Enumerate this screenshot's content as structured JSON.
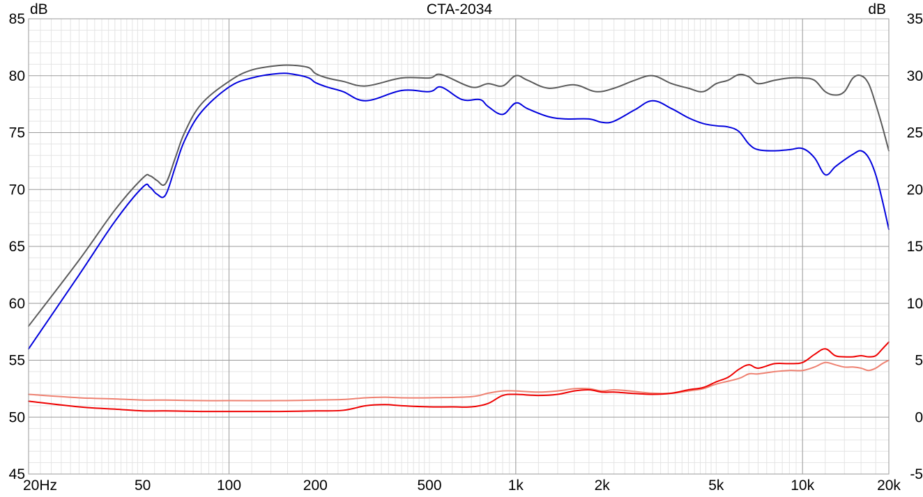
{
  "chart_data": {
    "type": "line",
    "title": "CTA-2034",
    "xscale": "log",
    "xlim": [
      20,
      20000
    ],
    "y_left": {
      "label": "dB",
      "lim": [
        45,
        85
      ],
      "ticks": [
        45,
        50,
        55,
        60,
        65,
        70,
        75,
        80,
        85
      ]
    },
    "y_right": {
      "label": "dB",
      "lim": [
        -5,
        35
      ],
      "ticks": [
        -5,
        0,
        5,
        10,
        15,
        20,
        25,
        30,
        35
      ]
    },
    "x_ticks": [
      {
        "value": 20,
        "label": "20Hz"
      },
      {
        "value": 50,
        "label": "50"
      },
      {
        "value": 100,
        "label": "100"
      },
      {
        "value": 200,
        "label": "200"
      },
      {
        "value": 500,
        "label": "500"
      },
      {
        "value": 1000,
        "label": "1k"
      },
      {
        "value": 2000,
        "label": "2k"
      },
      {
        "value": 5000,
        "label": "5k"
      },
      {
        "value": 10000,
        "label": "10k"
      },
      {
        "value": 20000,
        "label": "20k"
      }
    ],
    "grid": true,
    "legend": "none",
    "series": [
      {
        "axis": "left",
        "color": "#5a5a5a",
        "x": [
          20,
          30,
          40,
          50,
          53,
          56,
          60,
          65,
          70,
          80,
          100,
          120,
          150,
          170,
          190,
          200,
          220,
          250,
          300,
          400,
          500,
          550,
          700,
          800,
          900,
          1000,
          1100,
          1300,
          1600,
          1900,
          2200,
          2600,
          3000,
          3500,
          4000,
          4500,
          5000,
          5500,
          6000,
          6500,
          7000,
          8000,
          9000,
          10000,
          11000,
          12000,
          13000,
          14000,
          15000,
          16000,
          17000,
          18000,
          19000,
          20000
        ],
        "y": [
          58.0,
          63.8,
          68.2,
          71.0,
          71.2,
          70.8,
          70.5,
          72.8,
          75.0,
          77.5,
          79.5,
          80.5,
          80.9,
          80.9,
          80.7,
          80.2,
          79.8,
          79.5,
          79.1,
          79.8,
          79.8,
          80.1,
          79.0,
          79.3,
          79.1,
          80.0,
          79.6,
          78.9,
          79.2,
          78.6,
          78.9,
          79.6,
          80.0,
          79.3,
          78.9,
          78.6,
          79.3,
          79.6,
          80.1,
          79.9,
          79.3,
          79.6,
          79.8,
          79.8,
          79.6,
          78.6,
          78.3,
          78.6,
          79.8,
          80.0,
          79.3,
          77.5,
          75.5,
          73.4
        ]
      },
      {
        "axis": "left",
        "color": "#0000dd",
        "x": [
          20,
          30,
          40,
          50,
          53,
          56,
          60,
          65,
          70,
          80,
          100,
          120,
          150,
          170,
          190,
          200,
          220,
          250,
          300,
          400,
          500,
          550,
          650,
          750,
          800,
          900,
          1000,
          1100,
          1300,
          1500,
          1800,
          2000,
          2200,
          2600,
          3000,
          3500,
          4000,
          4500,
          5000,
          5500,
          6000,
          6500,
          7000,
          8000,
          9000,
          10000,
          11000,
          12000,
          13000,
          14000,
          15000,
          16000,
          17000,
          18000,
          19000,
          20000
        ],
        "y": [
          56.0,
          62.5,
          67.2,
          70.2,
          70.2,
          69.6,
          69.5,
          72.0,
          74.3,
          76.8,
          79.0,
          79.8,
          80.2,
          80.1,
          79.8,
          79.4,
          79.0,
          78.6,
          77.8,
          78.7,
          78.6,
          79.0,
          77.9,
          77.9,
          77.3,
          76.6,
          77.6,
          77.1,
          76.4,
          76.2,
          76.2,
          75.9,
          76.0,
          77.0,
          77.8,
          77.1,
          76.3,
          75.8,
          75.6,
          75.5,
          75.1,
          74.0,
          73.5,
          73.4,
          73.5,
          73.6,
          72.8,
          71.3,
          72.0,
          72.6,
          73.1,
          73.4,
          72.8,
          71.3,
          69.0,
          66.5
        ]
      },
      {
        "axis": "right",
        "color": "#ee8070",
        "x": [
          20,
          30,
          40,
          50,
          60,
          80,
          100,
          150,
          200,
          250,
          300,
          350,
          400,
          500,
          700,
          800,
          900,
          1000,
          1200,
          1400,
          1600,
          1800,
          2000,
          2200,
          2500,
          3000,
          3500,
          4000,
          4500,
          5000,
          6000,
          6500,
          7000,
          8000,
          9000,
          10000,
          11000,
          12000,
          13000,
          14000,
          15000,
          16000,
          17000,
          18000,
          19000,
          20000
        ],
        "y": [
          2.0,
          1.7,
          1.6,
          1.5,
          1.5,
          1.45,
          1.45,
          1.45,
          1.5,
          1.55,
          1.7,
          1.75,
          1.7,
          1.7,
          1.8,
          2.1,
          2.3,
          2.3,
          2.2,
          2.3,
          2.5,
          2.5,
          2.3,
          2.4,
          2.3,
          2.1,
          2.1,
          2.3,
          2.5,
          2.9,
          3.4,
          3.8,
          3.8,
          4.0,
          4.1,
          4.1,
          4.4,
          4.8,
          4.6,
          4.4,
          4.4,
          4.3,
          4.1,
          4.3,
          4.7,
          5.0
        ]
      },
      {
        "axis": "right",
        "color": "#ee0000",
        "x": [
          20,
          30,
          40,
          50,
          60,
          80,
          100,
          150,
          200,
          250,
          300,
          350,
          400,
          500,
          600,
          700,
          800,
          900,
          1000,
          1200,
          1400,
          1600,
          1800,
          2000,
          2200,
          2500,
          3000,
          3500,
          4000,
          4500,
          5000,
          5500,
          6000,
          6500,
          7000,
          8000,
          9000,
          10000,
          11000,
          12000,
          13000,
          14000,
          15000,
          16000,
          17000,
          18000,
          19000,
          20000
        ],
        "y": [
          1.4,
          0.9,
          0.7,
          0.55,
          0.55,
          0.5,
          0.5,
          0.5,
          0.55,
          0.6,
          1.0,
          1.1,
          1.0,
          0.9,
          0.9,
          0.9,
          1.2,
          1.9,
          2.0,
          1.9,
          2.0,
          2.3,
          2.4,
          2.2,
          2.2,
          2.1,
          2.0,
          2.1,
          2.4,
          2.6,
          3.1,
          3.5,
          4.2,
          4.6,
          4.3,
          4.7,
          4.7,
          4.8,
          5.5,
          6.0,
          5.4,
          5.3,
          5.3,
          5.4,
          5.3,
          5.4,
          6.0,
          6.6
        ]
      }
    ]
  }
}
